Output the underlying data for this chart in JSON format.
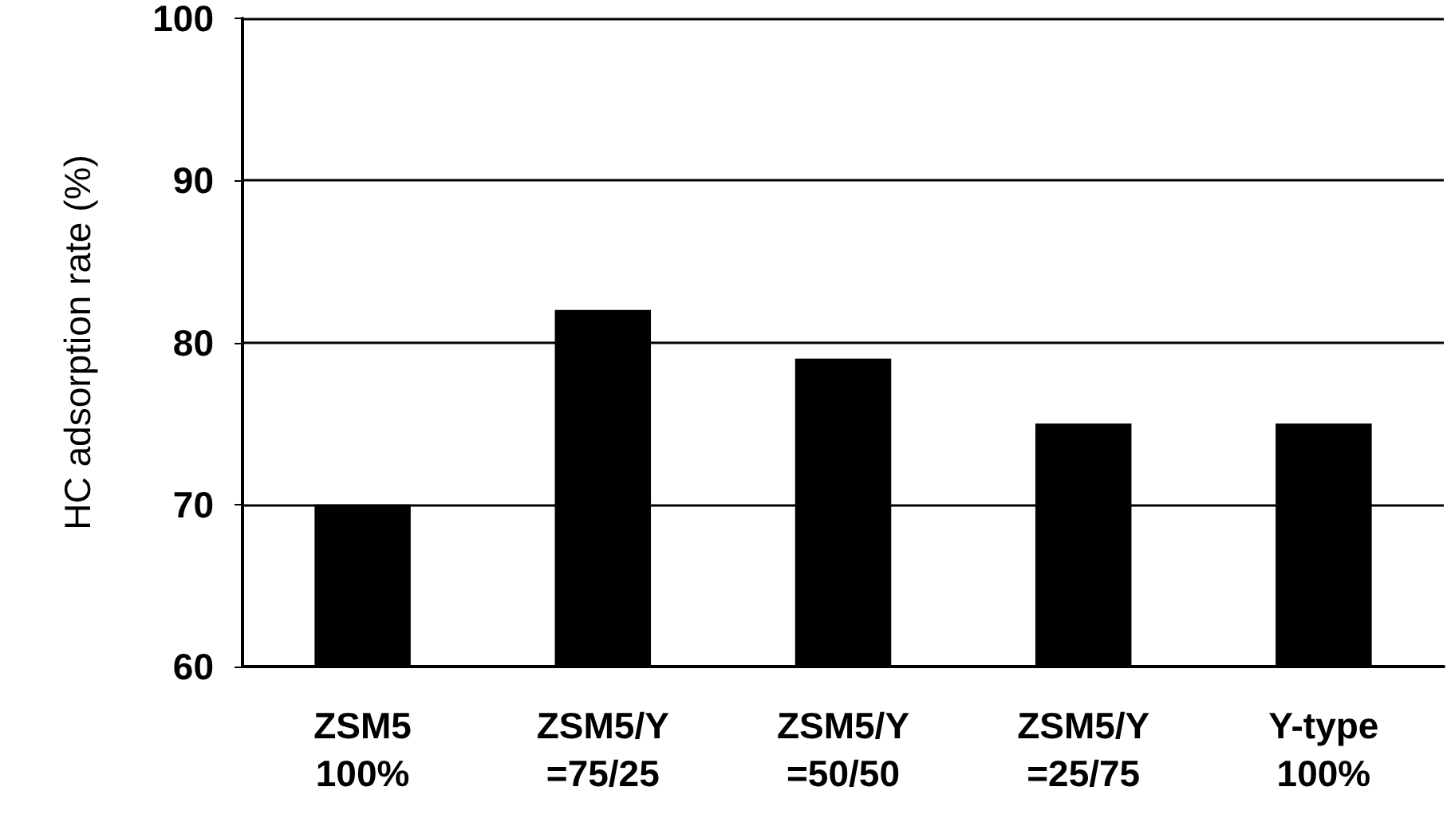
{
  "chart_data": {
    "type": "bar",
    "ylabel": "HC adsorption rate (%)",
    "categories": [
      "ZSM5\n100%",
      "ZSM5/Y\n=75/25",
      "ZSM5/Y\n=50/50",
      "ZSM5/Y\n=25/75",
      "Y-type\n100%"
    ],
    "values": [
      70,
      82,
      79,
      75,
      75
    ],
    "color": "#000000",
    "ylim": [
      60,
      100
    ],
    "yticks": [
      60,
      70,
      80,
      90,
      100
    ],
    "grid": "y"
  }
}
